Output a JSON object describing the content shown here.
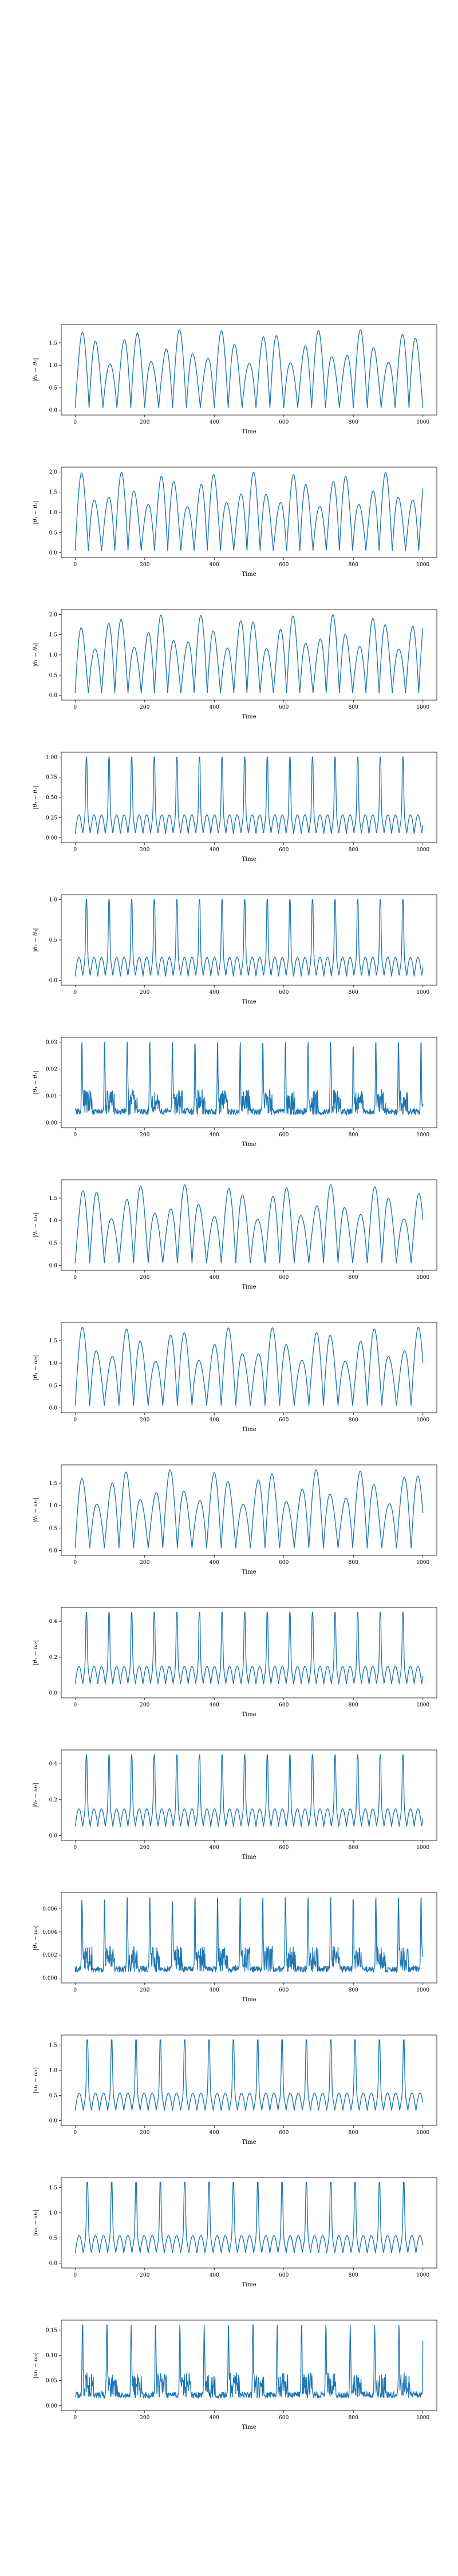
{
  "line_color": "#1f77b4",
  "chart_data": [
    {
      "type": "line",
      "ylabel": "|θ₁ − θ₁|",
      "xlabel": "Time",
      "xlim": [
        0,
        1000
      ],
      "ylim": [
        0,
        1.8
      ],
      "xticks": [
        0,
        200,
        400,
        600,
        800,
        1000
      ],
      "yticks": [
        0.0,
        0.5,
        1.0,
        1.5
      ],
      "ytick_labels": [
        "0.0",
        "0.5",
        "1.0",
        "1.5"
      ],
      "pattern": "osc",
      "period": 40,
      "peak": 1.8,
      "base": 0.05
    },
    {
      "type": "line",
      "ylabel": "|θ₁ − θ₂|",
      "xlabel": "Time",
      "xlim": [
        0,
        1000
      ],
      "ylim": [
        0,
        2.0
      ],
      "xticks": [
        0,
        200,
        400,
        600,
        800,
        1000
      ],
      "yticks": [
        0.0,
        0.5,
        1.0,
        1.5,
        2.0
      ],
      "ytick_labels": [
        "0.0",
        "0.5",
        "1.0",
        "1.5",
        "2.0"
      ],
      "pattern": "osc",
      "period": 38,
      "peak": 2.0,
      "base": 0.05
    },
    {
      "type": "line",
      "ylabel": "|θ₁ − θ₃|",
      "xlabel": "Time",
      "xlim": [
        0,
        1000
      ],
      "ylim": [
        0,
        2.0
      ],
      "xticks": [
        0,
        200,
        400,
        600,
        800,
        1000
      ],
      "yticks": [
        0.0,
        0.5,
        1.0,
        1.5,
        2.0
      ],
      "ytick_labels": [
        "0.0",
        "0.5",
        "1.0",
        "1.5",
        "2.0"
      ],
      "pattern": "osc",
      "period": 38,
      "peak": 2.0,
      "base": 0.05
    },
    {
      "type": "line",
      "ylabel": "|θ₂ − θ₂|",
      "xlabel": "Time",
      "xlim": [
        0,
        1000
      ],
      "ylim": [
        0,
        1.0
      ],
      "xticks": [
        0,
        200,
        400,
        600,
        800,
        1000
      ],
      "yticks": [
        0.0,
        0.25,
        0.5,
        0.75,
        1.0
      ],
      "ytick_labels": [
        "0.00",
        "0.25",
        "0.50",
        "0.75",
        "1.00"
      ],
      "pattern": "spiky",
      "period": 65,
      "peak": 1.0,
      "base": 0.05
    },
    {
      "type": "line",
      "ylabel": "|θ₂ − θ₃|",
      "xlabel": "Time",
      "xlim": [
        0,
        1000
      ],
      "ylim": [
        0,
        1.0
      ],
      "xticks": [
        0,
        200,
        400,
        600,
        800,
        1000
      ],
      "yticks": [
        0.0,
        0.5,
        1.0
      ],
      "ytick_labels": [
        "0.0",
        "0.5",
        "1.0"
      ],
      "pattern": "spiky",
      "period": 65,
      "peak": 1.0,
      "base": 0.05
    },
    {
      "type": "line",
      "ylabel": "|θ₃ − θ₃|",
      "xlabel": "Time",
      "xlim": [
        0,
        1000
      ],
      "ylim": [
        0,
        0.03
      ],
      "xticks": [
        0,
        200,
        400,
        600,
        800,
        1000
      ],
      "yticks": [
        0.0,
        0.01,
        0.02,
        0.03
      ],
      "ytick_labels": [
        "0.00",
        "0.01",
        "0.02",
        "0.03"
      ],
      "pattern": "noisy",
      "period": 65,
      "peak": 0.03,
      "base": 0.003
    },
    {
      "type": "line",
      "ylabel": "|θ₁ − ω₁|",
      "xlabel": "Time",
      "xlim": [
        0,
        1000
      ],
      "ylim": [
        0,
        1.8
      ],
      "xticks": [
        0,
        200,
        400,
        600,
        800,
        1000
      ],
      "yticks": [
        0.0,
        0.5,
        1.0,
        1.5
      ],
      "ytick_labels": [
        "0.0",
        "0.5",
        "1.0",
        "1.5"
      ],
      "pattern": "osc",
      "period": 42,
      "peak": 1.8,
      "base": 0.05
    },
    {
      "type": "line",
      "ylabel": "|θ₁ − ω₂|",
      "xlabel": "Time",
      "xlim": [
        0,
        1000
      ],
      "ylim": [
        0,
        1.8
      ],
      "xticks": [
        0,
        200,
        400,
        600,
        800,
        1000
      ],
      "yticks": [
        0.0,
        0.5,
        1.0,
        1.5
      ],
      "ytick_labels": [
        "0.0",
        "0.5",
        "1.0",
        "1.5"
      ],
      "pattern": "osc",
      "period": 42,
      "peak": 1.8,
      "base": 0.05
    },
    {
      "type": "line",
      "ylabel": "|θ₁ − ω₃|",
      "xlabel": "Time",
      "xlim": [
        0,
        1000
      ],
      "ylim": [
        0,
        1.8
      ],
      "xticks": [
        0,
        200,
        400,
        600,
        800,
        1000
      ],
      "yticks": [
        0.0,
        0.5,
        1.0,
        1.5
      ],
      "ytick_labels": [
        "0.0",
        "0.5",
        "1.0",
        "1.5"
      ],
      "pattern": "osc",
      "period": 42,
      "peak": 1.8,
      "base": 0.05
    },
    {
      "type": "line",
      "ylabel": "|θ₂ − ω₂|",
      "xlabel": "Time",
      "xlim": [
        0,
        1000
      ],
      "ylim": [
        0,
        0.45
      ],
      "xticks": [
        0,
        200,
        400,
        600,
        800,
        1000
      ],
      "yticks": [
        0.0,
        0.2,
        0.4
      ],
      "ytick_labels": [
        "0.0",
        "0.2",
        "0.4"
      ],
      "pattern": "spiky",
      "period": 65,
      "peak": 0.45,
      "base": 0.05
    },
    {
      "type": "line",
      "ylabel": "|θ₂ − ω₃|",
      "xlabel": "Time",
      "xlim": [
        0,
        1000
      ],
      "ylim": [
        0,
        0.45
      ],
      "xticks": [
        0,
        200,
        400,
        600,
        800,
        1000
      ],
      "yticks": [
        0.0,
        0.2,
        0.4
      ],
      "ytick_labels": [
        "0.0",
        "0.2",
        "0.4"
      ],
      "pattern": "spiky",
      "period": 65,
      "peak": 0.45,
      "base": 0.05
    },
    {
      "type": "line",
      "ylabel": "|θ₃ − ω₃|",
      "xlabel": "Time",
      "xlim": [
        0,
        1000
      ],
      "ylim": [
        0,
        0.007
      ],
      "xticks": [
        0,
        200,
        400,
        600,
        800,
        1000
      ],
      "yticks": [
        0.0,
        0.002,
        0.004,
        0.006
      ],
      "ytick_labels": [
        "0.000",
        "0.002",
        "0.004",
        "0.006"
      ],
      "pattern": "noisy",
      "period": 65,
      "peak": 0.007,
      "base": 0.0005
    },
    {
      "type": "line",
      "ylabel": "|ω₁ − ω₁|",
      "xlabel": "Time",
      "xlim": [
        0,
        1000
      ],
      "ylim": [
        0,
        1.6
      ],
      "xticks": [
        0,
        200,
        400,
        600,
        800,
        1000
      ],
      "yticks": [
        0.0,
        0.5,
        1.0,
        1.5
      ],
      "ytick_labels": [
        "0.0",
        "0.5",
        "1.0",
        "1.5"
      ],
      "pattern": "spiky",
      "period": 70,
      "peak": 1.6,
      "base": 0.2
    },
    {
      "type": "line",
      "ylabel": "|ω₁ − ω₂|",
      "xlabel": "Time",
      "xlim": [
        0,
        1000
      ],
      "ylim": [
        0,
        1.6
      ],
      "xticks": [
        0,
        200,
        400,
        600,
        800,
        1000
      ],
      "yticks": [
        0.0,
        0.5,
        1.0,
        1.5
      ],
      "ytick_labels": [
        "0.0",
        "0.5",
        "1.0",
        "1.5"
      ],
      "pattern": "spiky",
      "period": 70,
      "peak": 1.6,
      "base": 0.2
    },
    {
      "type": "line",
      "ylabel": "|ω₁ − ω₃|",
      "xlabel": "Time",
      "xlim": [
        0,
        1000
      ],
      "ylim": [
        0,
        0.16
      ],
      "xticks": [
        0,
        200,
        400,
        600,
        800,
        1000
      ],
      "yticks": [
        0.0,
        0.05,
        0.1,
        0.15
      ],
      "ytick_labels": [
        "0.00",
        "0.05",
        "0.10",
        "0.15"
      ],
      "pattern": "noisy",
      "period": 70,
      "peak": 0.16,
      "base": 0.015
    }
  ]
}
